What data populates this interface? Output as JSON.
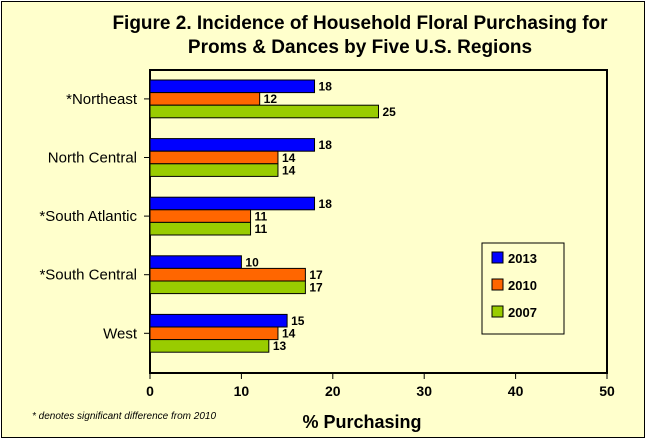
{
  "chart_data": {
    "type": "bar",
    "orientation": "horizontal",
    "title_line1": "Figure 2.  Incidence of Household Floral Purchasing for",
    "title_line2": "Proms & Dances by Five U.S. Regions",
    "xlabel": "% Purchasing",
    "ylabel": "",
    "xlim": [
      0,
      50
    ],
    "x_ticks": [
      "0",
      "10",
      "20",
      "30",
      "40",
      "50"
    ],
    "categories": [
      "*Northeast",
      "North Central",
      "*South Atlantic",
      "*South Central",
      "West"
    ],
    "series": [
      {
        "name": "2013",
        "color": "#0000ff",
        "values": [
          18,
          18,
          18,
          10,
          15
        ]
      },
      {
        "name": "2010",
        "color": "#ff6600",
        "values": [
          12,
          14,
          11,
          17,
          14
        ]
      },
      {
        "name": "2007",
        "color": "#99cc00",
        "values": [
          25,
          14,
          11,
          17,
          13
        ]
      }
    ],
    "grid": false,
    "legend_position": "right",
    "footnote": "*  denotes significant difference from 2010"
  }
}
